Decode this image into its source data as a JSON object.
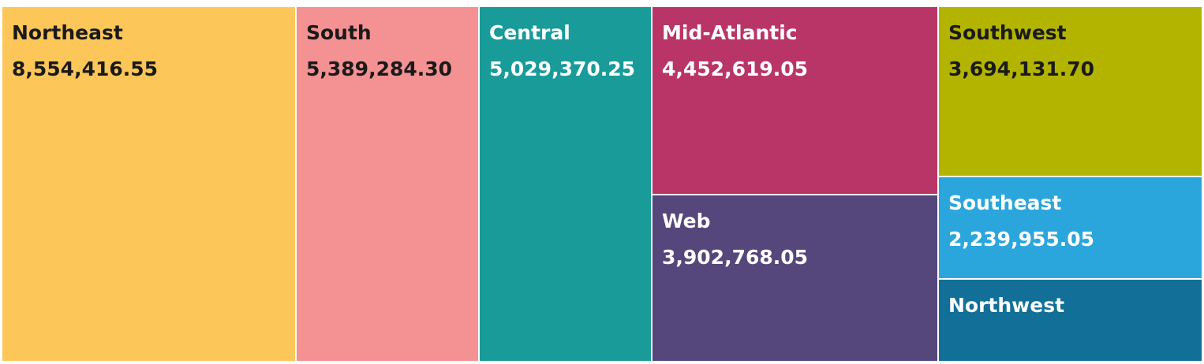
{
  "chart_data": {
    "type": "treemap",
    "title": "",
    "items": [
      {
        "name": "Northeast",
        "value": 8554416.55,
        "value_label": "8,554,416.55",
        "color": "#fdc659",
        "text_color": "#1a1a1a"
      },
      {
        "name": "South",
        "value": 5389284.3,
        "value_label": "5,389,284.30",
        "color": "#f49193",
        "text_color": "#1a1a1a"
      },
      {
        "name": "Central",
        "value": 5029370.25,
        "value_label": "5,029,370.25",
        "color": "#189b99",
        "text_color": "#ffffff"
      },
      {
        "name": "Mid-Atlantic",
        "value": 4452619.05,
        "value_label": "4,452,619.05",
        "color": "#b93567",
        "text_color": "#ffffff"
      },
      {
        "name": "Web",
        "value": 3902768.05,
        "value_label": "3,902,768.05",
        "color": "#55467b",
        "text_color": "#ffffff"
      },
      {
        "name": "Southwest",
        "value": 3694131.7,
        "value_label": "3,694,131.70",
        "color": "#b3b400",
        "text_color": "#1a1a1a"
      },
      {
        "name": "Southeast",
        "value": 2239955.05,
        "value_label": "2,239,955.05",
        "color": "#2ba6dc",
        "text_color": "#ffffff"
      },
      {
        "name": "Northwest",
        "value_label": "",
        "color": "#116f98",
        "text_color": "#ffffff"
      }
    ]
  }
}
